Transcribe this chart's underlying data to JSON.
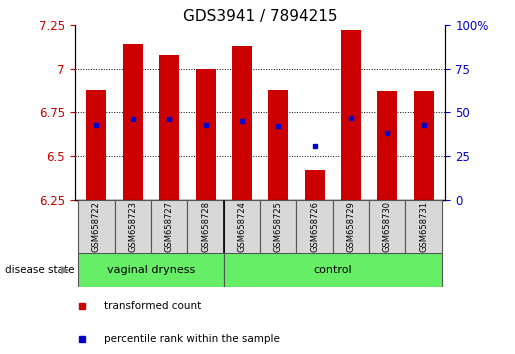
{
  "title": "GDS3941 / 7894215",
  "categories": [
    "GSM658722",
    "GSM658723",
    "GSM658727",
    "GSM658728",
    "GSM658724",
    "GSM658725",
    "GSM658726",
    "GSM658729",
    "GSM658730",
    "GSM658731"
  ],
  "bar_values": [
    6.88,
    7.14,
    7.08,
    7.0,
    7.13,
    6.88,
    6.42,
    7.22,
    6.87,
    6.87
  ],
  "bar_bottom": 6.25,
  "percentile_values": [
    6.68,
    6.71,
    6.71,
    6.68,
    6.7,
    6.67,
    6.56,
    6.72,
    6.63,
    6.68
  ],
  "bar_color": "#cc0000",
  "percentile_color": "#0000cc",
  "ylim": [
    6.25,
    7.25
  ],
  "y_ticks": [
    6.25,
    6.5,
    6.75,
    7.0,
    7.25
  ],
  "y_tick_labels": [
    "6.25",
    "6.5",
    "6.75",
    "7",
    "7.25"
  ],
  "right_y_ticks": [
    0,
    25,
    50,
    75,
    100
  ],
  "right_y_tick_labels": [
    "0",
    "25",
    "50",
    "75",
    "100%"
  ],
  "groups": [
    {
      "label": "vaginal dryness",
      "start": 0,
      "end": 3
    },
    {
      "label": "control",
      "start": 4,
      "end": 9
    }
  ],
  "group_colors": [
    "#66ee66",
    "#66ee66"
  ],
  "disease_state_label": "disease state",
  "legend_items": [
    {
      "label": "transformed count",
      "color": "#cc0000",
      "marker": "s"
    },
    {
      "label": "percentile rank within the sample",
      "color": "#0000cc",
      "marker": "s"
    }
  ],
  "background_color": "#ffffff",
  "title_fontsize": 11,
  "tick_fontsize": 8.5,
  "bar_width": 0.55,
  "label_box_color": "#d8d8d8",
  "grid_yticks": [
    6.5,
    6.75,
    7.0
  ]
}
